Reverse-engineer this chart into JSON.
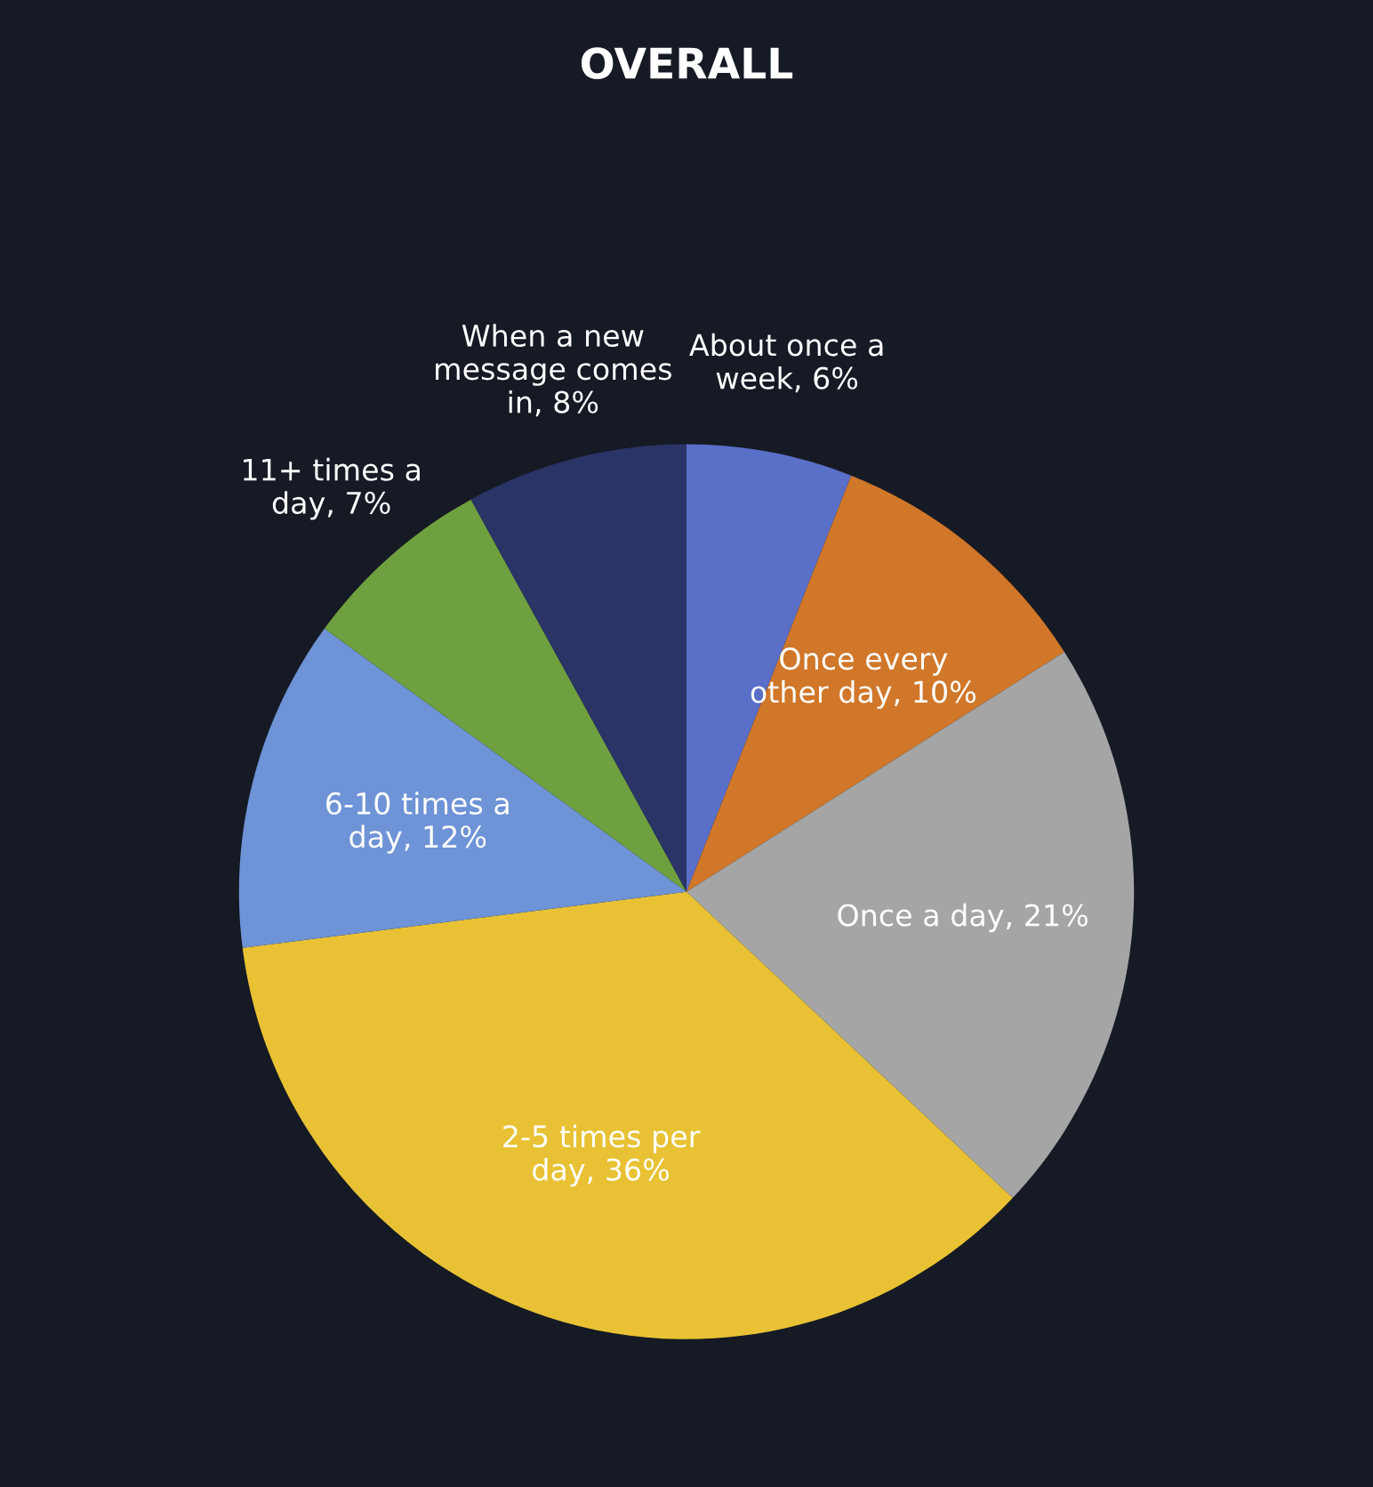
{
  "chart_data": {
    "type": "pie",
    "title": "OVERALL",
    "categories": [
      "About once a week",
      "Once every other day",
      "Once a day",
      "2-5 times per day",
      "6-10 times a day",
      "11+ times a day",
      "When a new message comes in"
    ],
    "values": [
      6,
      10,
      21,
      36,
      12,
      7,
      8
    ],
    "value_labels": [
      "6%",
      "10%",
      "21%",
      "36%",
      "12%",
      "7%",
      "8%"
    ],
    "colors": [
      "#5a6fc8",
      "#d0772a",
      "#a5a5a5",
      "#e8c234",
      "#6e93d6",
      "#6fa040",
      "#2b3467"
    ]
  }
}
